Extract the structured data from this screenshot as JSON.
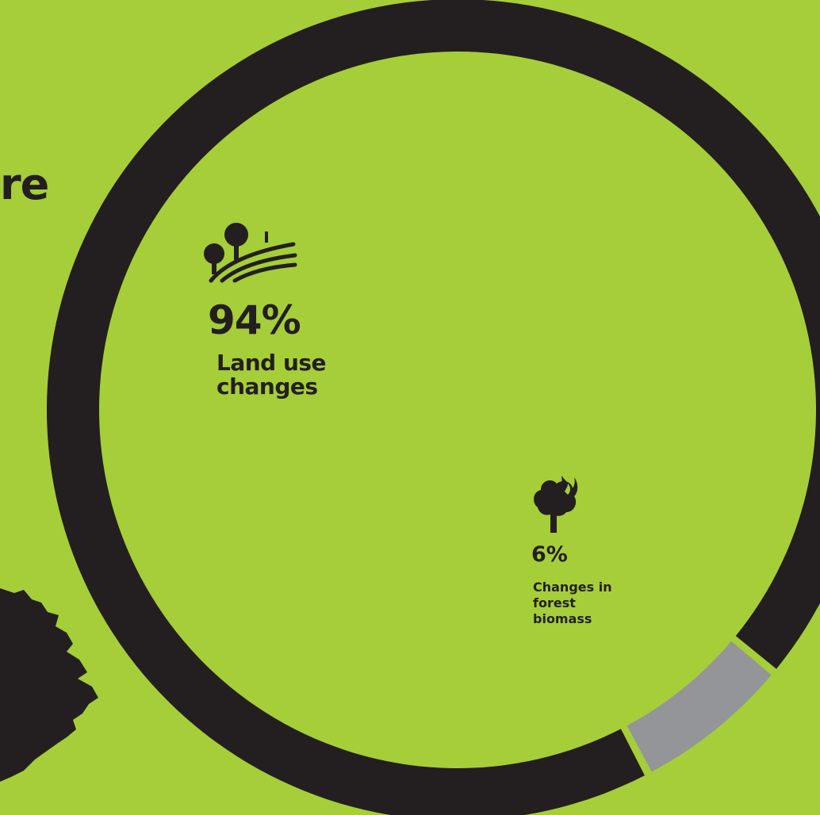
{
  "colors": {
    "background": "#a6ce39",
    "ring_major": "#231f20",
    "ring_minor": "#939598",
    "text": "#231f20"
  },
  "title_fragment": "re",
  "chart_data": {
    "type": "pie",
    "style": "donut",
    "categories": [
      "Land use changes",
      "Changes in forest biomass"
    ],
    "values": [
      94,
      6
    ],
    "unit": "%",
    "slices": [
      {
        "label": "Land use changes",
        "value": 94,
        "value_label": "94%",
        "color": "#231f20",
        "icon": "landscape-trees-fields-icon"
      },
      {
        "label": "Changes in forest biomass",
        "value": 6,
        "value_label": "6%",
        "color": "#939598",
        "icon": "tree-on-fire-icon"
      }
    ],
    "legend": "none",
    "grid": false
  }
}
